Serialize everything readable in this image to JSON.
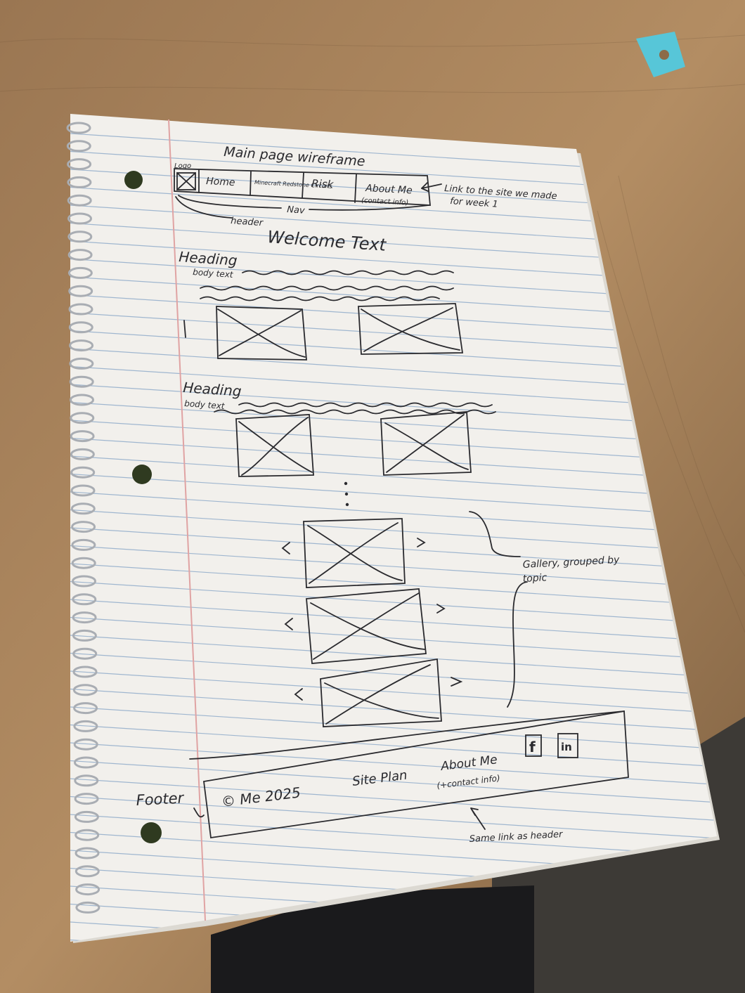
{
  "title": "Main page wireframe",
  "header": {
    "logo_label": "Logo",
    "nav_items": [
      "Home",
      "Minecraft Redstone Circuits",
      "Risk",
      "About Me"
    ],
    "about_sub": "(contact info)",
    "nav_label": "Nav",
    "header_label": "header",
    "link_note_line1": "Link to the site we made",
    "link_note_line2": "for week 1"
  },
  "welcome_text": "Welcome Text",
  "sections": [
    {
      "heading": "Heading",
      "body_label": "body text"
    },
    {
      "heading": "Heading",
      "body_label": "body text"
    }
  ],
  "gallery_note_line1": "Gallery, grouped by",
  "gallery_note_line2": "topic",
  "footer": {
    "label": "Footer",
    "copyright": "© Me 2025",
    "site_plan": "Site Plan",
    "about_me": "About Me",
    "contact": "(+contact info)",
    "social_icons": [
      "facebook-icon",
      "linkedin-icon"
    ],
    "facebook_glyph": "f",
    "linkedin_glyph": "in",
    "same_link_note": "Same link as header"
  },
  "colors": {
    "desk": "#8c6b48",
    "paper": "#f2f0ec",
    "ruled_line": "#9fb6cf",
    "margin_line": "#e0a3a3",
    "ink": "#2a2a2e"
  }
}
